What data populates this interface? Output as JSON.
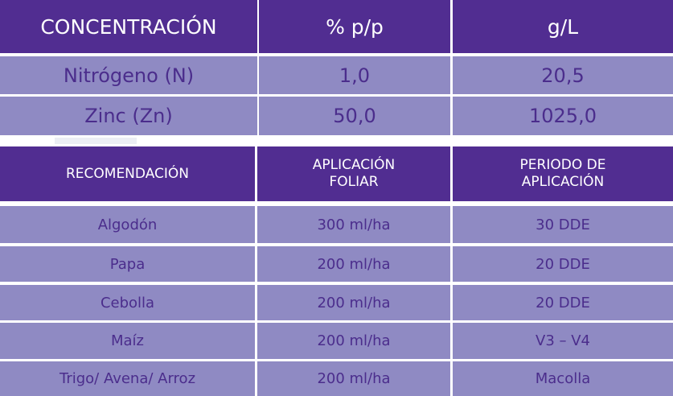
{
  "concentration_table": {
    "headers": [
      "CONCENTRACIÓN",
      "% p/p",
      "g/L"
    ],
    "rows": [
      [
        "Nitrógeno (N)",
        "1,0",
        "20,5"
      ],
      [
        "Zinc (Zn)",
        "50,0",
        "1025,0"
      ]
    ]
  },
  "recommendation_table": {
    "headers": [
      "RECOMENDACIÓN",
      "APLICACIÓN FOLIAR",
      "PERIODO DE APLICACIÓN"
    ],
    "rows": [
      [
        "Algodón",
        "300 ml/ha",
        "30 DDE"
      ],
      [
        "Papa",
        "200 ml/ha",
        "20 DDE"
      ],
      [
        "Cebolla",
        "200 ml/ha",
        "20 DDE"
      ],
      [
        "Maíz",
        "200 ml/ha",
        "V3 – V4"
      ],
      [
        "Trigo/ Avena/ Arroz",
        "200 ml/ha",
        "Macolla"
      ]
    ]
  },
  "colors": {
    "header": "#512d91",
    "row": "#8f8ac3",
    "row_text": "#4b2d8c"
  }
}
